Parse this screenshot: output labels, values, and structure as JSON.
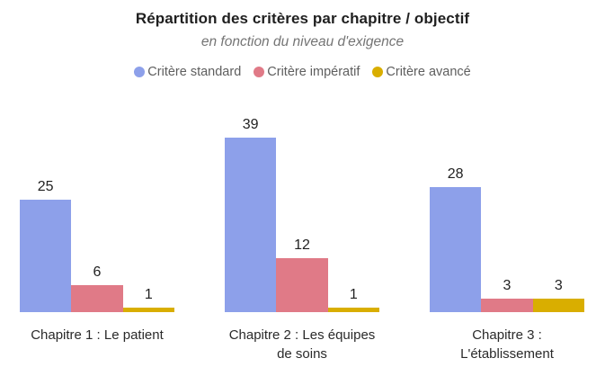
{
  "chart_data": {
    "type": "bar",
    "title": "Répartition des critères par chapitre / objectif",
    "subtitle": "en fonction du niveau d'exigence",
    "legend_position": "top",
    "grid": false,
    "y_axis_visible": false,
    "x_axis_line_visible": false,
    "value_labels_shown": true,
    "ylim": [
      0,
      40
    ],
    "background_color": "#ffffff",
    "categories": [
      "Chapitre 1 : Le patient",
      "Chapitre 2 : Les équipes de soins",
      "Chapitre 3 : L'établissement"
    ],
    "tick_labels": [
      "Chapitre 1 : Le patient",
      "Chapitre 2 : Les équipes\nde soins",
      "Chapitre 3 :\nL'établissement"
    ],
    "series": [
      {
        "name": "Critère standard",
        "color": "#8da0ea",
        "values": [
          25,
          39,
          28
        ]
      },
      {
        "name": "Critère impératif",
        "color": "#e07a87",
        "values": [
          6,
          12,
          3
        ]
      },
      {
        "name": "Critère avancé",
        "color": "#d9ae00",
        "values": [
          1,
          1,
          3
        ]
      }
    ],
    "text_colors": {
      "title": "#1f1f1f",
      "subtitle": "#757575",
      "legend": "#5e5e5e",
      "value_labels": "#212121",
      "tick_labels": "#2a2a2a"
    }
  }
}
